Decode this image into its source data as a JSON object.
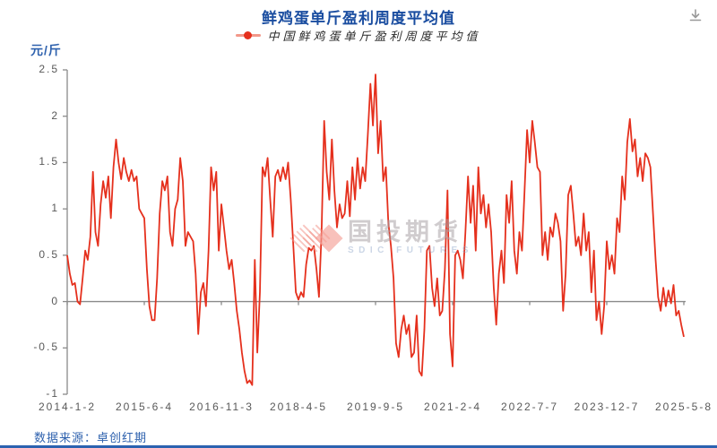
{
  "header": {
    "title": "鲜鸡蛋单斤盈利周度平均值"
  },
  "legend": {
    "label": "中国鲜鸡蛋单斤盈利周度平均值",
    "marker_color": "#e5301d"
  },
  "toolbar": {
    "download_icon": "download-icon"
  },
  "axes": {
    "y_unit": "元/斤",
    "y_ticks": [
      "2.5",
      "2",
      "1.5",
      "1",
      "0.5",
      "0",
      "-0.5",
      "-1"
    ],
    "x_ticks": [
      "2014-1-2",
      "2015-6-4",
      "2016-11-3",
      "2018-4-5",
      "2019-9-5",
      "2021-2-4",
      "2022-7-7",
      "2023-12-7",
      "2025-5-8"
    ]
  },
  "watermark": {
    "cn": "国投期货",
    "en": "SDIC FUTURES"
  },
  "footer": {
    "source": "数据来源：卓创红期"
  },
  "colors": {
    "title_blue": "#1a4da0",
    "axis_blue": "#2f62ae",
    "line_red": "#e5301d",
    "tick_gray": "#595959",
    "axis_gray": "#8a8a8a"
  },
  "chart_data": {
    "type": "line",
    "title": "鲜鸡蛋单斤盈利周度平均值",
    "series_name": "中国鲜鸡蛋单斤盈利周度平均值",
    "xlabel": "",
    "ylabel": "元/斤",
    "ylim": [
      -1,
      2.5
    ],
    "x_range": [
      "2014-1-2",
      "2025-5-8"
    ],
    "x_tick_labels": [
      "2014-1-2",
      "2015-6-4",
      "2016-11-3",
      "2018-4-5",
      "2019-9-5",
      "2021-2-4",
      "2022-7-7",
      "2023-12-7",
      "2025-5-8"
    ],
    "grid": false,
    "legend_position": "top",
    "line_color": "#e5301d",
    "values": [
      0.5,
      0.3,
      0.18,
      0.2,
      0.0,
      -0.03,
      0.25,
      0.55,
      0.45,
      0.7,
      1.4,
      0.75,
      0.6,
      1.05,
      1.3,
      1.12,
      1.35,
      0.9,
      1.45,
      1.75,
      1.5,
      1.32,
      1.55,
      1.4,
      1.3,
      1.42,
      1.3,
      1.35,
      1.0,
      0.95,
      0.9,
      0.35,
      -0.05,
      -0.2,
      -0.2,
      0.25,
      0.95,
      1.3,
      1.2,
      1.35,
      0.75,
      0.6,
      1.0,
      1.1,
      1.55,
      1.3,
      0.6,
      0.75,
      0.7,
      0.65,
      0.3,
      -0.35,
      0.1,
      0.2,
      -0.05,
      0.55,
      1.45,
      1.2,
      1.4,
      0.55,
      1.05,
      0.8,
      0.55,
      0.35,
      0.45,
      0.2,
      -0.1,
      -0.3,
      -0.55,
      -0.75,
      -0.88,
      -0.85,
      -0.9,
      0.45,
      -0.55,
      0.1,
      1.45,
      1.35,
      1.55,
      1.1,
      0.7,
      1.35,
      1.42,
      1.3,
      1.45,
      1.32,
      1.5,
      1.1,
      0.6,
      0.1,
      0.02,
      0.1,
      0.05,
      0.4,
      0.58,
      0.55,
      0.6,
      0.35,
      0.05,
      0.75,
      1.95,
      1.4,
      1.1,
      1.75,
      1.2,
      0.8,
      1.05,
      0.9,
      0.95,
      1.3,
      0.92,
      1.45,
      1.1,
      1.55,
      1.22,
      1.45,
      1.3,
      1.8,
      2.35,
      1.9,
      2.45,
      1.6,
      1.95,
      1.3,
      1.45,
      0.85,
      0.6,
      0.25,
      -0.45,
      -0.6,
      -0.3,
      -0.15,
      -0.35,
      -0.25,
      -0.6,
      -0.55,
      -0.15,
      -0.75,
      -0.8,
      -0.3,
      0.55,
      0.6,
      0.15,
      -0.05,
      0.25,
      -0.15,
      -0.1,
      0.35,
      1.2,
      -0.35,
      -0.7,
      0.5,
      0.55,
      0.45,
      0.25,
      0.75,
      1.35,
      0.85,
      1.25,
      0.55,
      1.45,
      0.95,
      1.15,
      0.8,
      1.05,
      0.75,
      0.15,
      -0.25,
      0.3,
      0.55,
      0.2,
      1.15,
      0.85,
      1.3,
      0.55,
      0.3,
      0.75,
      0.55,
      1.2,
      1.85,
      1.5,
      1.95,
      1.72,
      1.45,
      1.4,
      0.5,
      0.75,
      0.45,
      0.8,
      0.7,
      0.95,
      0.85,
      0.65,
      -0.1,
      0.3,
      1.15,
      1.25,
      0.95,
      0.6,
      0.7,
      0.5,
      0.95,
      0.55,
      0.75,
      0.1,
      0.55,
      -0.2,
      0.0,
      -0.35,
      -0.05,
      0.65,
      0.35,
      0.5,
      0.3,
      0.9,
      0.75,
      1.35,
      1.1,
      1.72,
      1.97,
      1.62,
      1.75,
      1.35,
      1.55,
      1.3,
      1.6,
      1.55,
      1.45,
      0.95,
      0.45,
      0.05,
      -0.1,
      0.15,
      -0.05,
      0.12,
      -0.02,
      0.18,
      -0.15,
      -0.1,
      -0.25,
      -0.38
    ]
  }
}
